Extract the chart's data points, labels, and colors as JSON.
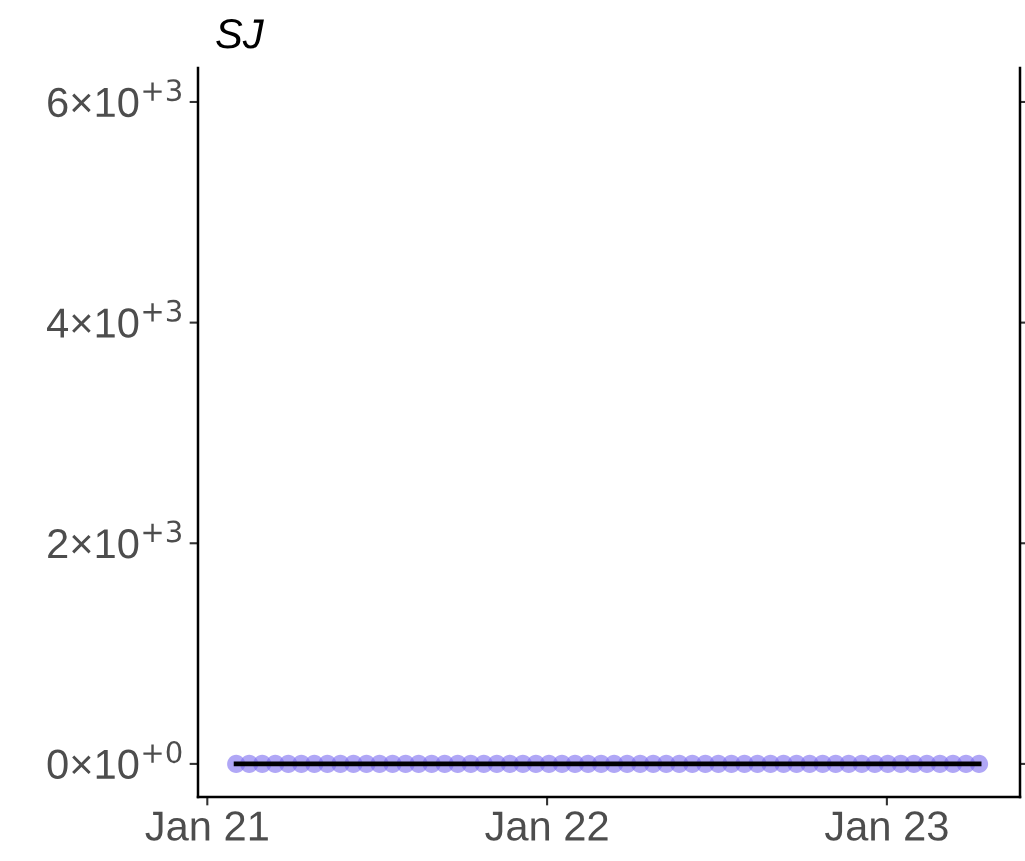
{
  "chart_data": {
    "type": "scatter",
    "title": "SJ",
    "x": [
      "2021-02-01",
      "2021-02-15",
      "2021-03-01",
      "2021-03-15",
      "2021-03-29",
      "2021-04-12",
      "2021-04-26",
      "2021-05-10",
      "2021-05-24",
      "2021-06-07",
      "2021-06-21",
      "2021-07-05",
      "2021-07-19",
      "2021-08-02",
      "2021-08-16",
      "2021-08-30",
      "2021-09-13",
      "2021-09-27",
      "2021-10-11",
      "2021-10-25",
      "2021-11-08",
      "2021-11-22",
      "2021-12-06",
      "2021-12-20",
      "2022-01-03",
      "2022-01-17",
      "2022-01-31",
      "2022-02-14",
      "2022-02-28",
      "2022-03-14",
      "2022-03-28",
      "2022-04-11",
      "2022-04-25",
      "2022-05-09",
      "2022-05-23",
      "2022-06-06",
      "2022-06-20",
      "2022-07-04",
      "2022-07-18",
      "2022-08-01",
      "2022-08-15",
      "2022-08-29",
      "2022-09-12",
      "2022-09-26",
      "2022-10-10",
      "2022-10-24",
      "2022-11-07",
      "2022-11-21",
      "2022-12-05",
      "2022-12-19",
      "2023-01-02",
      "2023-01-16",
      "2023-01-30",
      "2023-02-13",
      "2023-02-27",
      "2023-03-13",
      "2023-03-27",
      "2023-04-10"
    ],
    "series": [
      {
        "type": "scatter",
        "color": "#7b6cf0",
        "marker": "circle",
        "values": [
          0,
          0,
          0,
          0,
          0,
          0,
          0,
          0,
          0,
          0,
          0,
          0,
          0,
          0,
          0,
          0,
          0,
          0,
          0,
          0,
          0,
          0,
          0,
          0,
          0,
          0,
          0,
          0,
          0,
          0,
          0,
          0,
          0,
          0,
          0,
          0,
          0,
          0,
          0,
          0,
          0,
          0,
          0,
          0,
          0,
          0,
          0,
          0,
          0,
          0,
          0,
          0,
          0,
          0,
          0,
          0,
          0,
          0
        ]
      },
      {
        "type": "line",
        "color": "#000000",
        "line_style": "solid",
        "values": [
          0,
          0,
          0,
          0,
          0,
          0,
          0,
          0,
          0,
          0,
          0,
          0,
          0,
          0,
          0,
          0,
          0,
          0,
          0,
          0,
          0,
          0,
          0,
          0,
          0,
          0,
          0,
          0,
          0,
          0,
          0,
          0,
          0,
          0,
          0,
          0,
          0,
          0,
          0,
          0,
          0,
          0,
          0,
          0,
          0,
          0,
          0,
          0,
          0,
          0,
          0,
          0,
          0,
          0,
          0,
          0,
          0,
          0
        ]
      }
    ],
    "xlim": [
      "2020-12-22",
      "2023-05-24"
    ],
    "xticks": [
      {
        "value": "2021-01-01",
        "label": "Jan 21"
      },
      {
        "value": "2022-01-01",
        "label": "Jan 22"
      },
      {
        "value": "2023-01-01",
        "label": "Jan 23"
      }
    ],
    "ylim": [
      -300,
      6308
    ],
    "yticks": [
      {
        "value": 0,
        "label": "0×10$^{+0}$"
      },
      {
        "value": 2000,
        "label": "2×10$^{+3}$"
      },
      {
        "value": 4000,
        "label": "4×10$^{+3}$"
      },
      {
        "value": 6000,
        "label": "6×10$^{+3}$"
      }
    ],
    "grid": false
  }
}
